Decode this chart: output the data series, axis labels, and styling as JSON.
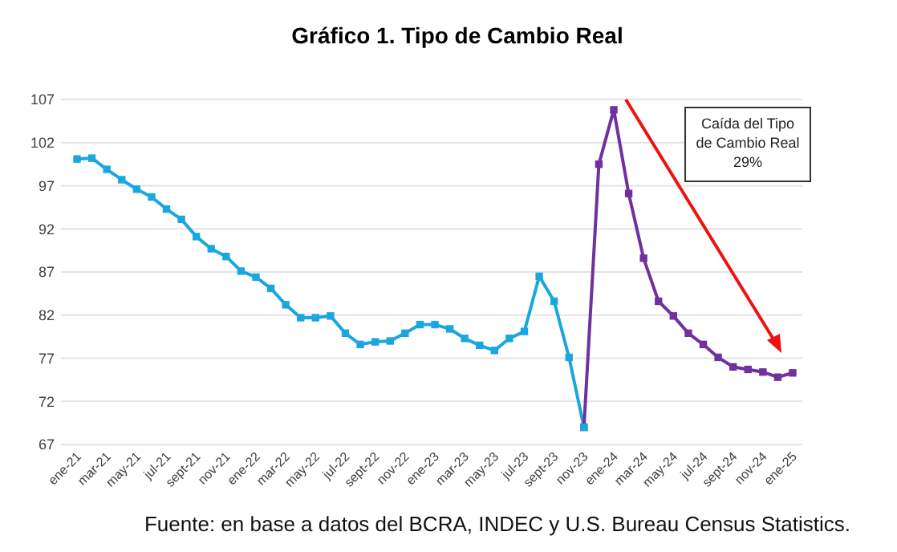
{
  "chart_data": {
    "type": "line",
    "title": "Gráfico 1. Tipo de Cambio Real",
    "categories": [
      "ene-21",
      null,
      "mar-21",
      null,
      "may-21",
      null,
      "jul-21",
      null,
      "sept-21",
      null,
      "nov-21",
      null,
      "ene-22",
      null,
      "mar-22",
      null,
      "may-22",
      null,
      "jul-22",
      null,
      "sept-22",
      null,
      "nov-22",
      null,
      "ene-23",
      null,
      "mar-23",
      null,
      "may-23",
      null,
      "jul-23",
      null,
      "sept-23",
      null,
      "nov-23",
      null,
      "ene-24",
      null,
      "mar-24",
      null,
      "may-24",
      null,
      "jul-24",
      null,
      "sept-24",
      null,
      "nov-24",
      null,
      "ene-25"
    ],
    "series": [
      {
        "color": "#1aa7e0",
        "values": [
          100.1,
          100.2,
          98.9,
          97.7,
          96.6,
          95.7,
          94.3,
          93.1,
          91.1,
          89.7,
          88.8,
          87.1,
          86.4,
          85.1,
          83.2,
          81.7,
          81.7,
          81.9,
          79.9,
          78.6,
          78.9,
          79.0,
          79.9,
          80.9,
          80.9,
          80.4,
          79.3,
          78.5,
          77.9,
          79.3,
          80.1,
          86.5,
          83.6,
          77.1,
          69.0,
          null,
          null,
          null,
          null,
          null,
          null,
          null,
          null,
          null,
          null,
          null,
          null,
          null,
          null
        ]
      },
      {
        "color": "#7030a0",
        "values": [
          null,
          null,
          null,
          null,
          null,
          null,
          null,
          null,
          null,
          null,
          null,
          null,
          null,
          null,
          null,
          null,
          null,
          null,
          null,
          null,
          null,
          null,
          null,
          null,
          null,
          null,
          null,
          null,
          null,
          null,
          null,
          null,
          null,
          null,
          69.0,
          99.5,
          105.8,
          96.1,
          88.6,
          83.6,
          81.9,
          79.9,
          78.6,
          77.1,
          76.0,
          75.7,
          75.4,
          74.8,
          75.3
        ]
      }
    ],
    "ylim": [
      67,
      107
    ],
    "yticks": [
      67,
      72,
      77,
      82,
      87,
      92,
      97,
      102,
      107
    ],
    "grid": "y",
    "marker": "square",
    "line_style": "solid",
    "annotations": [
      "Caída del Tipo\nde Cambio Real\n29%",
      "Fuente: en base a datos del BCRA, INDEC y U.S. Bureau Census Statistics."
    ]
  }
}
